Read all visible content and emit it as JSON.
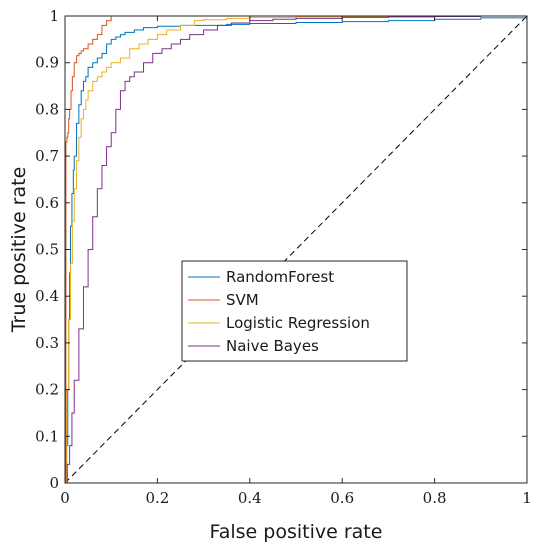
{
  "chart_data": {
    "type": "line",
    "title": "",
    "xlabel": "False positive rate",
    "ylabel": "True positive rate",
    "xlim": [
      0,
      1
    ],
    "ylim": [
      0,
      1
    ],
    "x_ticks": [
      "0",
      "0.2",
      "0.4",
      "0.6",
      "0.8",
      "1"
    ],
    "y_ticks": [
      "0",
      "0.1",
      "0.2",
      "0.3",
      "0.4",
      "0.5",
      "0.6",
      "0.7",
      "0.8",
      "0.9",
      "1"
    ],
    "grid": false,
    "legend_position": "center",
    "reference_line": {
      "style": "dashed",
      "color": "#000000",
      "x": [
        0,
        1
      ],
      "y": [
        0,
        1
      ]
    },
    "series": [
      {
        "name": "RandomForest",
        "color": "#0072BD",
        "x": [
          0,
          0.003,
          0.006,
          0.008,
          0.01,
          0.012,
          0.015,
          0.018,
          0.02,
          0.025,
          0.03,
          0.035,
          0.04,
          0.045,
          0.05,
          0.06,
          0.07,
          0.08,
          0.09,
          0.1,
          0.11,
          0.12,
          0.13,
          0.15,
          0.17,
          0.2,
          0.25,
          0.3,
          0.35,
          0.4,
          0.5,
          0.6,
          0.7,
          0.8,
          0.9,
          1.0
        ],
        "y": [
          0,
          0.08,
          0.2,
          0.35,
          0.45,
          0.55,
          0.62,
          0.67,
          0.7,
          0.77,
          0.81,
          0.84,
          0.86,
          0.87,
          0.89,
          0.9,
          0.91,
          0.92,
          0.94,
          0.95,
          0.955,
          0.96,
          0.965,
          0.97,
          0.975,
          0.978,
          0.98,
          0.98,
          0.982,
          0.984,
          0.986,
          0.988,
          0.99,
          0.993,
          0.996,
          1.0
        ]
      },
      {
        "name": "SVM",
        "color": "#D95319",
        "x": [
          0,
          0.002,
          0.004,
          0.006,
          0.008,
          0.01,
          0.013,
          0.016,
          0.02,
          0.025,
          0.03,
          0.035,
          0.04,
          0.05,
          0.06,
          0.07,
          0.08,
          0.09,
          0.1,
          0.12,
          0.15,
          0.2,
          0.3,
          0.4,
          0.5,
          0.6,
          0.7,
          0.8,
          0.9,
          1.0
        ],
        "y": [
          0,
          0.73,
          0.74,
          0.75,
          0.78,
          0.8,
          0.84,
          0.87,
          0.9,
          0.915,
          0.92,
          0.925,
          0.93,
          0.94,
          0.95,
          0.96,
          0.98,
          0.99,
          1.0,
          1.0,
          1.0,
          1.0,
          1.0,
          1.0,
          1.0,
          1.0,
          1.0,
          1.0,
          1.0,
          1.0
        ]
      },
      {
        "name": "Logistic Regression",
        "color": "#EDB120",
        "x": [
          0,
          0.004,
          0.008,
          0.012,
          0.016,
          0.02,
          0.025,
          0.03,
          0.035,
          0.04,
          0.045,
          0.05,
          0.06,
          0.07,
          0.08,
          0.09,
          0.1,
          0.12,
          0.14,
          0.16,
          0.18,
          0.2,
          0.22,
          0.25,
          0.28,
          0.3,
          0.35,
          0.4,
          0.5,
          0.6,
          0.7,
          0.8,
          0.9,
          1.0
        ],
        "y": [
          0,
          0.2,
          0.35,
          0.47,
          0.56,
          0.63,
          0.69,
          0.74,
          0.78,
          0.8,
          0.82,
          0.84,
          0.86,
          0.87,
          0.88,
          0.89,
          0.9,
          0.91,
          0.93,
          0.94,
          0.95,
          0.96,
          0.97,
          0.98,
          0.99,
          0.992,
          0.995,
          0.997,
          0.998,
          0.999,
          1.0,
          1.0,
          1.0,
          1.0
        ]
      },
      {
        "name": "Naive Bayes",
        "color": "#7E2F8E",
        "x": [
          0,
          0.005,
          0.01,
          0.015,
          0.02,
          0.03,
          0.04,
          0.05,
          0.06,
          0.07,
          0.08,
          0.09,
          0.1,
          0.11,
          0.12,
          0.13,
          0.14,
          0.15,
          0.17,
          0.19,
          0.21,
          0.23,
          0.25,
          0.27,
          0.3,
          0.33,
          0.36,
          0.4,
          0.45,
          0.5,
          0.6,
          0.7,
          0.8,
          0.9,
          1.0
        ],
        "y": [
          0,
          0.04,
          0.08,
          0.15,
          0.22,
          0.33,
          0.42,
          0.5,
          0.57,
          0.63,
          0.68,
          0.72,
          0.75,
          0.8,
          0.84,
          0.86,
          0.87,
          0.88,
          0.9,
          0.92,
          0.93,
          0.94,
          0.95,
          0.96,
          0.97,
          0.98,
          0.985,
          0.99,
          0.993,
          0.995,
          0.997,
          0.998,
          0.999,
          1.0,
          1.0
        ]
      }
    ]
  }
}
